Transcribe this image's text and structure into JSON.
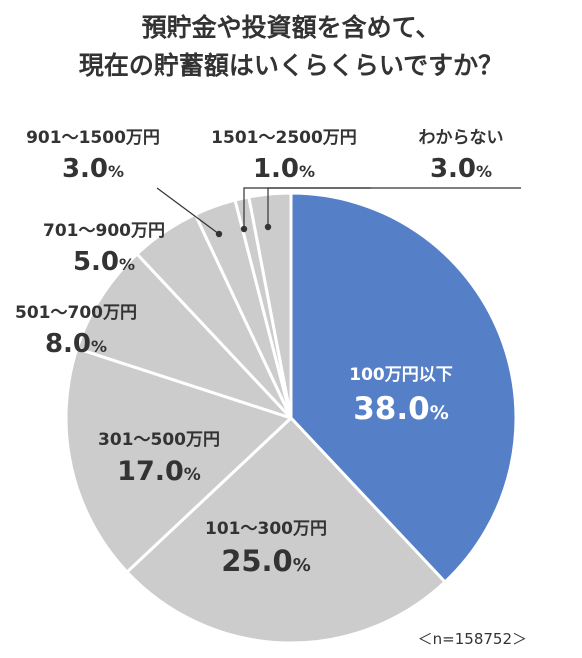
{
  "chart_data": {
    "type": "pie",
    "title_lines": [
      "預貯金や投資額を含めて、",
      "現在の貯蓄額はいくらくらいですか？"
    ],
    "slices": [
      {
        "label": "100万円以下",
        "value": 38.0,
        "display": "38.0",
        "unit": "%"
      },
      {
        "label": "101～300万円",
        "value": 25.0,
        "display": "25.0",
        "unit": "%"
      },
      {
        "label": "301～500万円",
        "value": 17.0,
        "display": "17.0",
        "unit": "%"
      },
      {
        "label": "501～700万円",
        "value": 8.0,
        "display": "8.0",
        "unit": "%"
      },
      {
        "label": "701～900万円",
        "value": 5.0,
        "display": "5.0",
        "unit": "%"
      },
      {
        "label": "901～1500万円",
        "value": 3.0,
        "display": "3.0",
        "unit": "%"
      },
      {
        "label": "1501～2500万円",
        "value": 1.0,
        "display": "1.0",
        "unit": "%"
      },
      {
        "label": "わからない",
        "value": 3.0,
        "display": "3.0",
        "unit": "%"
      }
    ],
    "note": "＜n=158752＞",
    "colors": {
      "highlight": "#5580C8",
      "other": "#CCCCCC",
      "separator": "#FFFFFF",
      "text_dark": "#333333",
      "text_light": "#FFFFFF",
      "leader": "#333333"
    }
  }
}
